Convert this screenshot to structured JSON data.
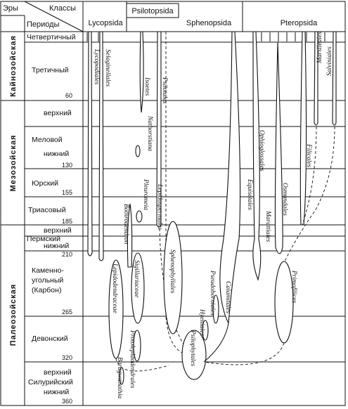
{
  "header": {
    "eras_label": "Эры",
    "periods_label": "Периоды",
    "classes_label": "Классы"
  },
  "classes": [
    "Lycopsida",
    "Psilotopsida",
    "Sphenopsida",
    "Pteropsida"
  ],
  "eras": [
    "Кайнозойская",
    "Мезозойская",
    "Палеозойская"
  ],
  "periods": [
    {
      "lines": [
        "Четвертичный"
      ]
    },
    {
      "lines": [
        "Третичный"
      ],
      "age": "60"
    },
    {
      "lines": [
        "верхний"
      ]
    },
    {
      "lines": [
        "Меловой",
        "нижний"
      ],
      "age": "130"
    },
    {
      "lines": [
        "Юрский"
      ],
      "age": "155"
    },
    {
      "lines": [
        "Триасовый"
      ],
      "age": "185"
    },
    {
      "lines": [
        "верхний",
        "Пермский",
        "нижний"
      ],
      "age": "210"
    },
    {
      "lines": [
        "Каменно-",
        "угольный",
        "(Карбон)"
      ],
      "age": "265"
    },
    {
      "lines": [
        "Девонский"
      ],
      "age": "320"
    },
    {
      "lines": [
        "верхний",
        "Силурийский",
        "нижний"
      ],
      "age": "360"
    }
  ],
  "taxa": [
    "Lycopodiales",
    "Selaginellales",
    "Isoetes",
    "Psilotales",
    "Ophioglossales",
    "Marsileales",
    "Salviniales",
    "Filicales",
    "Osmundales",
    "Marattiales",
    "Primofilices",
    "Equisetales",
    "Calamitales",
    "Pseudoborniales",
    "Hyeniales",
    "Psilophytales",
    "Sphenophyllales",
    "Lepidospermales",
    "Nathorstiana",
    "Pleuromeia",
    "Bothrodendron",
    "Sigillariaceae",
    "Lepidodendraceae",
    "Protolepidodendrales",
    "Baragwanathia"
  ]
}
